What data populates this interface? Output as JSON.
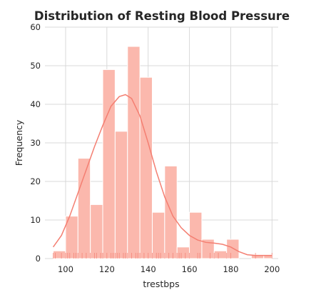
{
  "chart_data": {
    "type": "bar",
    "title": "Distribution of Resting Blood Pressure",
    "xlabel": "trestbps",
    "ylabel": "Frequency",
    "xlim": [
      90,
      203
    ],
    "ylim": [
      0,
      60
    ],
    "xticks": [
      100,
      120,
      140,
      160,
      180,
      200
    ],
    "yticks": [
      0,
      10,
      20,
      30,
      40,
      50,
      60
    ],
    "grid": true,
    "bins": {
      "edges": [
        94,
        100,
        106,
        112,
        118,
        124,
        130,
        136,
        142,
        148,
        154,
        160,
        166,
        172,
        178,
        184,
        190,
        196,
        200
      ],
      "counts": [
        2,
        11,
        26,
        14,
        49,
        33,
        55,
        47,
        12,
        24,
        3,
        12,
        5,
        2,
        5,
        0,
        1,
        1
      ]
    },
    "kde": {
      "x": [
        94,
        98,
        102,
        106,
        110,
        114,
        118,
        122,
        126,
        129,
        132,
        136,
        140,
        144,
        148,
        152,
        156,
        160,
        164,
        168,
        172,
        176,
        180,
        184,
        188,
        192,
        196,
        200
      ],
      "y": [
        3,
        6,
        11,
        17,
        23,
        29,
        34.5,
        39.5,
        42,
        42.5,
        41.5,
        37,
        30,
        22.5,
        16,
        11,
        8,
        6,
        4.8,
        4.2,
        4,
        3.7,
        3,
        1.8,
        1,
        0.8,
        0.8,
        0.8
      ]
    },
    "rug": [
      94,
      95,
      98,
      100,
      101,
      102,
      104,
      105,
      106,
      108,
      110,
      112,
      114,
      115,
      117,
      118,
      120,
      122,
      123,
      124,
      125,
      126,
      128,
      129,
      130,
      132,
      134,
      135,
      136,
      138,
      140,
      142,
      144,
      145,
      146,
      148,
      150,
      152,
      154,
      155,
      156,
      158,
      160,
      164,
      165,
      170,
      172,
      174,
      178,
      180,
      192,
      200
    ],
    "colors": {
      "bar_fill": "#fbb8ad",
      "bar_edge": "#ffffff",
      "kde_line": "#f47f72",
      "rug": "#f47f72",
      "grid": "#d9d9d9",
      "text": "#262626"
    }
  }
}
